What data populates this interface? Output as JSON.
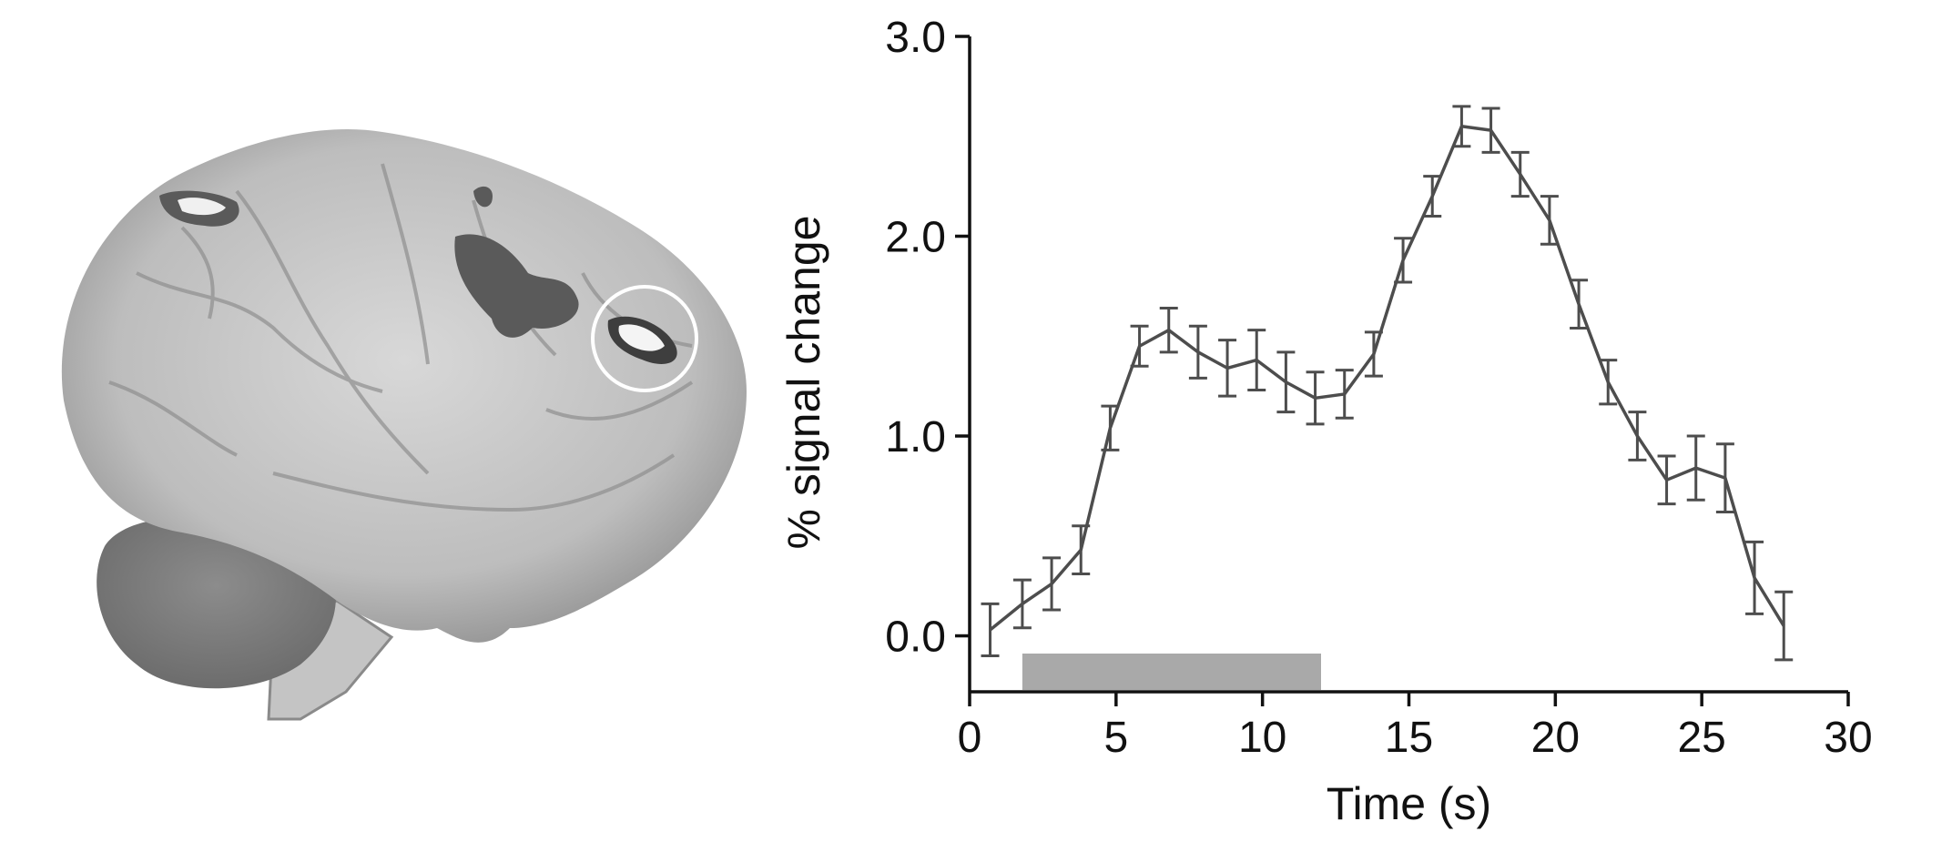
{
  "figure": {
    "brain_image": {
      "description_icon": "brain-lateral-view-icon",
      "colors": {
        "cortex": "#bdbdbd",
        "cortex_shadow": "#8f8f8f",
        "cerebellum": "#7e7e7e",
        "activation": "#5a5a5a",
        "highlight": "#f4f4f4",
        "circle": "#ffffff"
      }
    }
  },
  "chart_data": {
    "type": "line",
    "xlabel": "Time (s)",
    "ylabel": "% signal change",
    "xlim": [
      0,
      30
    ],
    "ylim": [
      -0.28,
      3.0
    ],
    "xticks": [
      0,
      5,
      10,
      15,
      20,
      25,
      30
    ],
    "xtick_labels": [
      "0",
      "5",
      "10",
      "15",
      "20",
      "25",
      "30"
    ],
    "yticks": [
      0.0,
      1.0,
      2.0,
      3.0
    ],
    "ytick_labels": [
      "0.0",
      "1.0",
      "2.0",
      "3.0"
    ],
    "grid": false,
    "legend": "none",
    "stimulus_bar": {
      "x_start": 1.8,
      "x_end": 12.0,
      "color": "#a9a9a9"
    },
    "series": [
      {
        "x": [
          0.7,
          1.8,
          2.8,
          3.8,
          4.8,
          5.8,
          6.8,
          7.8,
          8.8,
          9.8,
          10.8,
          11.8,
          12.8,
          13.8,
          14.8,
          15.8,
          16.8,
          17.8,
          18.8,
          19.8,
          20.8,
          21.8,
          22.8,
          23.8,
          24.8,
          25.8,
          26.8,
          27.8
        ],
        "values": [
          0.03,
          0.16,
          0.26,
          0.43,
          1.04,
          1.45,
          1.53,
          1.42,
          1.34,
          1.38,
          1.27,
          1.19,
          1.21,
          1.41,
          1.88,
          2.2,
          2.55,
          2.53,
          2.31,
          2.08,
          1.66,
          1.27,
          1.0,
          0.78,
          0.84,
          0.79,
          0.29,
          0.05
        ],
        "errors": [
          0.13,
          0.12,
          0.13,
          0.12,
          0.11,
          0.1,
          0.11,
          0.13,
          0.14,
          0.15,
          0.15,
          0.13,
          0.12,
          0.11,
          0.11,
          0.1,
          0.1,
          0.11,
          0.11,
          0.12,
          0.12,
          0.11,
          0.12,
          0.12,
          0.16,
          0.17,
          0.18,
          0.17
        ],
        "color": "#4d4d4d"
      }
    ]
  }
}
